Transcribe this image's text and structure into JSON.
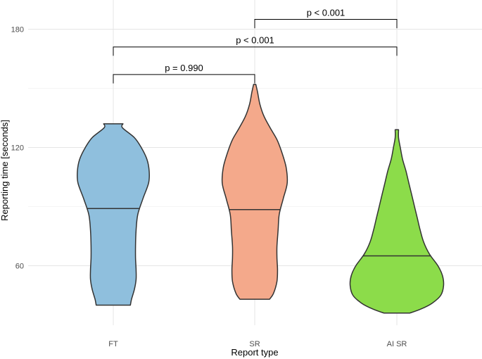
{
  "chart_data": {
    "type": "violin",
    "xlabel": "Report type",
    "ylabel": "Reporting time [seconds]",
    "categories": [
      "FT",
      "SR",
      "AI SR"
    ],
    "ylim": [
      30,
      187
    ],
    "yticks": [
      60,
      120,
      180
    ],
    "grid": true,
    "series": [
      {
        "category": "FT",
        "color": "#8fbfdd",
        "median": 89,
        "min": 40,
        "max": 132,
        "profile": [
          [
            40,
            0.3
          ],
          [
            43,
            0.32
          ],
          [
            48,
            0.37
          ],
          [
            53,
            0.4
          ],
          [
            58,
            0.4
          ],
          [
            64,
            0.39
          ],
          [
            70,
            0.39
          ],
          [
            78,
            0.4
          ],
          [
            86,
            0.43
          ],
          [
            94,
            0.52
          ],
          [
            102,
            0.62
          ],
          [
            108,
            0.63
          ],
          [
            114,
            0.59
          ],
          [
            120,
            0.49
          ],
          [
            125,
            0.37
          ],
          [
            130,
            0.16
          ],
          [
            132,
            0.17
          ]
        ]
      },
      {
        "category": "SR",
        "color": "#f4a98b",
        "median": 88.5,
        "min": 43,
        "max": 152,
        "profile": [
          [
            43,
            0.26
          ],
          [
            46,
            0.33
          ],
          [
            52,
            0.39
          ],
          [
            58,
            0.4
          ],
          [
            64,
            0.39
          ],
          [
            70,
            0.39
          ],
          [
            78,
            0.41
          ],
          [
            86,
            0.43
          ],
          [
            94,
            0.5
          ],
          [
            102,
            0.57
          ],
          [
            110,
            0.55
          ],
          [
            118,
            0.47
          ],
          [
            124,
            0.39
          ],
          [
            130,
            0.27
          ],
          [
            136,
            0.16
          ],
          [
            142,
            0.09
          ],
          [
            148,
            0.05
          ],
          [
            152,
            0.02
          ]
        ]
      },
      {
        "category": "AI SR",
        "color": "#8cdc4a",
        "median": 65,
        "min": 36,
        "max": 129,
        "profile": [
          [
            36,
            0.23
          ],
          [
            38,
            0.42
          ],
          [
            41,
            0.62
          ],
          [
            45,
            0.77
          ],
          [
            50,
            0.82
          ],
          [
            55,
            0.8
          ],
          [
            60,
            0.72
          ],
          [
            66,
            0.57
          ],
          [
            72,
            0.47
          ],
          [
            78,
            0.41
          ],
          [
            84,
            0.36
          ],
          [
            90,
            0.31
          ],
          [
            96,
            0.26
          ],
          [
            102,
            0.21
          ],
          [
            108,
            0.16
          ],
          [
            114,
            0.1
          ],
          [
            120,
            0.06
          ],
          [
            125,
            0.03
          ],
          [
            129,
            0.03
          ]
        ]
      }
    ],
    "comparisons": [
      {
        "from": "FT",
        "to": "SR",
        "label": "p = 0.990",
        "y": 157,
        "tip": 152.5
      },
      {
        "from": "FT",
        "to": "AI SR",
        "label": "p < 0.001",
        "y": 171,
        "tip": 166.5
      },
      {
        "from": "SR",
        "to": "AI SR",
        "label": "p < 0.001",
        "y": 185,
        "tip": 180.5
      }
    ]
  }
}
